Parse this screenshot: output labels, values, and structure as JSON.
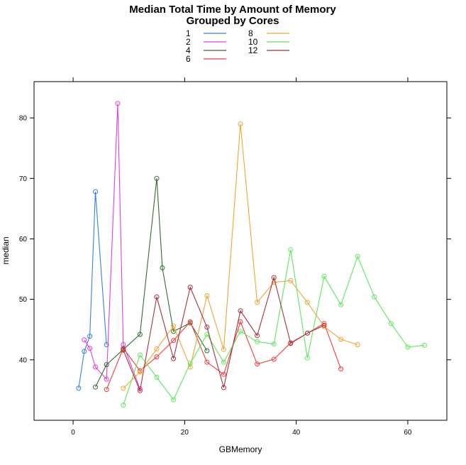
{
  "chart_data": {
    "type": "line",
    "title": "Median Total Time by Amount of Memory",
    "subtitle": "Grouped by Cores",
    "xlabel": "GBMemory",
    "ylabel": "median",
    "xlim": [
      -7,
      67
    ],
    "ylim": [
      30,
      86
    ],
    "x_ticks": [
      0,
      20,
      40,
      60
    ],
    "y_ticks": [
      40,
      50,
      60,
      70,
      80
    ],
    "markers": "open-circle",
    "grid": false,
    "legend_placement": "top-center",
    "series": [
      {
        "name": "1",
        "color": "#3a7fe0",
        "points": [
          [
            1,
            35.3
          ],
          [
            2,
            41.4
          ],
          [
            3,
            43.9
          ],
          [
            4,
            67.8
          ],
          [
            6,
            42.5
          ]
        ]
      },
      {
        "name": "2",
        "color": "#e23ee2",
        "points": [
          [
            2,
            43.3
          ],
          [
            3,
            41.9
          ],
          [
            4,
            38.8
          ],
          [
            6,
            36.8
          ],
          [
            8,
            82.4
          ],
          [
            9,
            42.5
          ],
          [
            12,
            35.2
          ]
        ]
      },
      {
        "name": "4",
        "color": "#2e6f2e",
        "points": [
          [
            4,
            35.5
          ],
          [
            6,
            39.2
          ],
          [
            9,
            41.7
          ],
          [
            12,
            44.2
          ],
          [
            15,
            70.0
          ],
          [
            16,
            55.2
          ],
          [
            18,
            44.7
          ],
          [
            21,
            46.1
          ],
          [
            24,
            41.5
          ]
        ]
      },
      {
        "name": "6",
        "color": "#f23c3c",
        "points": [
          [
            6,
            35.1
          ],
          [
            9,
            41.9
          ],
          [
            12,
            38.2
          ],
          [
            15,
            40.5
          ],
          [
            18,
            43.2
          ],
          [
            21,
            46.3
          ],
          [
            24,
            39.6
          ],
          [
            27,
            37.6
          ],
          [
            30,
            46.3
          ],
          [
            33,
            39.3
          ],
          [
            36,
            40.1
          ],
          [
            39,
            42.8
          ],
          [
            42,
            44.4
          ],
          [
            45,
            46.0
          ],
          [
            48,
            38.5
          ]
        ]
      },
      {
        "name": "8",
        "color": "#f2a533",
        "points": [
          [
            9,
            35.3
          ],
          [
            12,
            38.0
          ],
          [
            15,
            41.8
          ],
          [
            18,
            45.6
          ],
          [
            21,
            38.8
          ],
          [
            24,
            50.6
          ],
          [
            27,
            41.7
          ],
          [
            30,
            79.0
          ],
          [
            33,
            49.5
          ],
          [
            36,
            52.8
          ],
          [
            39,
            53.1
          ],
          [
            42,
            49.5
          ],
          [
            45,
            45.5
          ],
          [
            48,
            43.4
          ],
          [
            51,
            42.5
          ]
        ]
      },
      {
        "name": "10",
        "color": "#5ee85e",
        "points": [
          [
            9,
            32.5
          ],
          [
            12,
            40.8
          ],
          [
            15,
            37.1
          ],
          [
            18,
            33.4
          ],
          [
            21,
            39.4
          ],
          [
            24,
            44.2
          ],
          [
            27,
            39.6
          ],
          [
            30,
            44.7
          ],
          [
            33,
            43.0
          ],
          [
            36,
            42.6
          ],
          [
            39,
            58.2
          ],
          [
            42,
            40.3
          ],
          [
            45,
            53.8
          ],
          [
            48,
            49.1
          ],
          [
            51,
            57.1
          ],
          [
            54,
            50.4
          ],
          [
            57,
            46.0
          ],
          [
            60,
            42.1
          ],
          [
            63,
            42.4
          ]
        ]
      },
      {
        "name": "12",
        "color": "#a8323e",
        "points": [
          [
            9,
            41.6
          ],
          [
            12,
            34.9
          ],
          [
            15,
            50.4
          ],
          [
            18,
            40.2
          ],
          [
            21,
            52.0
          ],
          [
            24,
            45.4
          ],
          [
            27,
            35.4
          ],
          [
            30,
            48.1
          ],
          [
            33,
            44.0
          ],
          [
            36,
            53.6
          ],
          [
            39,
            42.7
          ],
          [
            42,
            44.4
          ],
          [
            45,
            45.7
          ]
        ]
      }
    ]
  }
}
